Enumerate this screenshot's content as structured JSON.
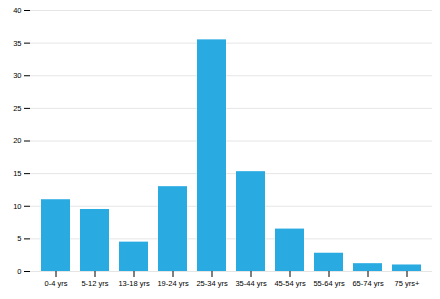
{
  "chart_data": {
    "type": "bar",
    "categories": [
      "0-4 yrs",
      "5-12 yrs",
      "13-18 yrs",
      "19-24 yrs",
      "25-34 yrs",
      "35-44 yrs",
      "45-54 yrs",
      "55-64 yrs",
      "65-74 yrs",
      "75 yrs+"
    ],
    "values": [
      11,
      9.5,
      4.5,
      13,
      35.5,
      15.3,
      6.5,
      2.8,
      1.2,
      1.0
    ],
    "color": "#29ABE2",
    "ylim": [
      0,
      40
    ],
    "yticks": [
      0,
      5,
      10,
      15,
      20,
      25,
      30,
      35,
      40
    ],
    "grid": true
  }
}
